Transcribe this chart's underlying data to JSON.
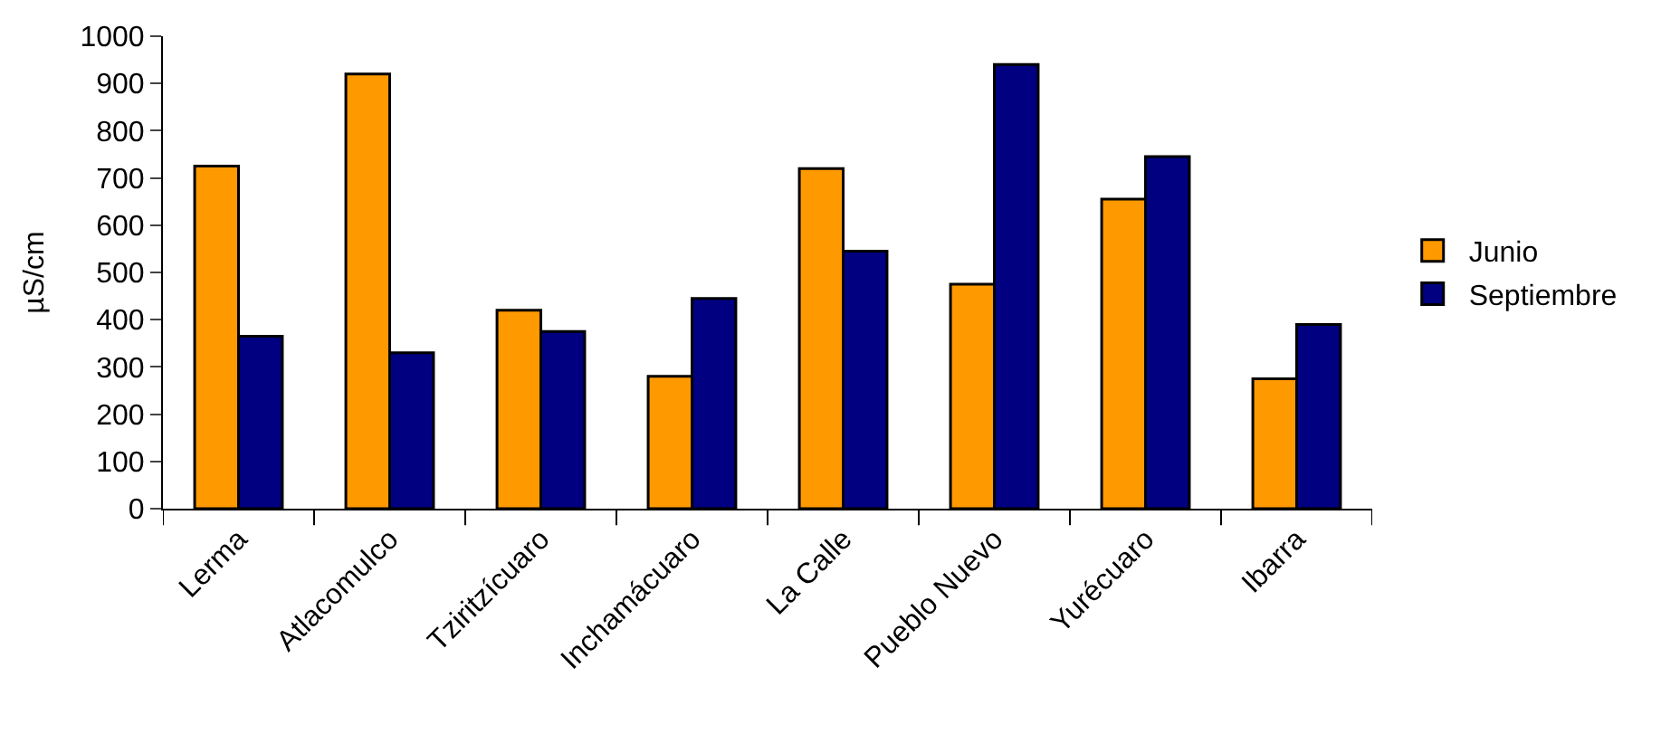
{
  "chart_data": {
    "type": "bar",
    "ylabel": "µS/cm",
    "categories": [
      "Lerma",
      "Atlacomulco",
      "Tziritzícuaro",
      "Inchamácuaro",
      "La Calle",
      "Pueblo Nuevo",
      "Yurécuaro",
      "Ibarra"
    ],
    "series": [
      {
        "name": "Junio",
        "color": "#ff9900",
        "values": [
          725,
          920,
          420,
          280,
          720,
          475,
          655,
          275
        ]
      },
      {
        "name": "Septiembre",
        "color": "#000080",
        "values": [
          365,
          330,
          375,
          445,
          545,
          940,
          745,
          390
        ]
      }
    ],
    "ylim": [
      0,
      1000
    ],
    "yticks": [
      0,
      100,
      200,
      300,
      400,
      500,
      600,
      700,
      800,
      900,
      1000
    ],
    "legend": "right"
  }
}
